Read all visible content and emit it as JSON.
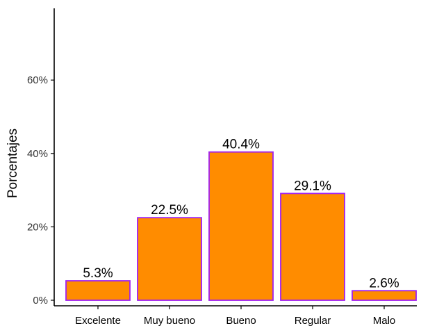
{
  "chart_data": {
    "type": "bar",
    "categories": [
      "Excelente",
      "Muy bueno",
      "Bueno",
      "Regular",
      "Malo"
    ],
    "values": [
      5.3,
      22.5,
      40.4,
      29.1,
      2.6
    ],
    "value_labels": [
      "5.3%",
      "22.5%",
      "40.4%",
      "29.1%",
      "2.6%"
    ],
    "title": "",
    "xlabel": "",
    "ylabel": "Porcentajes",
    "ylim": [
      0,
      75
    ],
    "yticks": [
      0,
      20,
      40,
      60
    ],
    "ytick_labels": [
      "0%",
      "20%",
      "40%",
      "60%"
    ],
    "grid": false,
    "legend": "none",
    "bar_fill": "#FF8C00",
    "bar_stroke": "#A020F0"
  }
}
